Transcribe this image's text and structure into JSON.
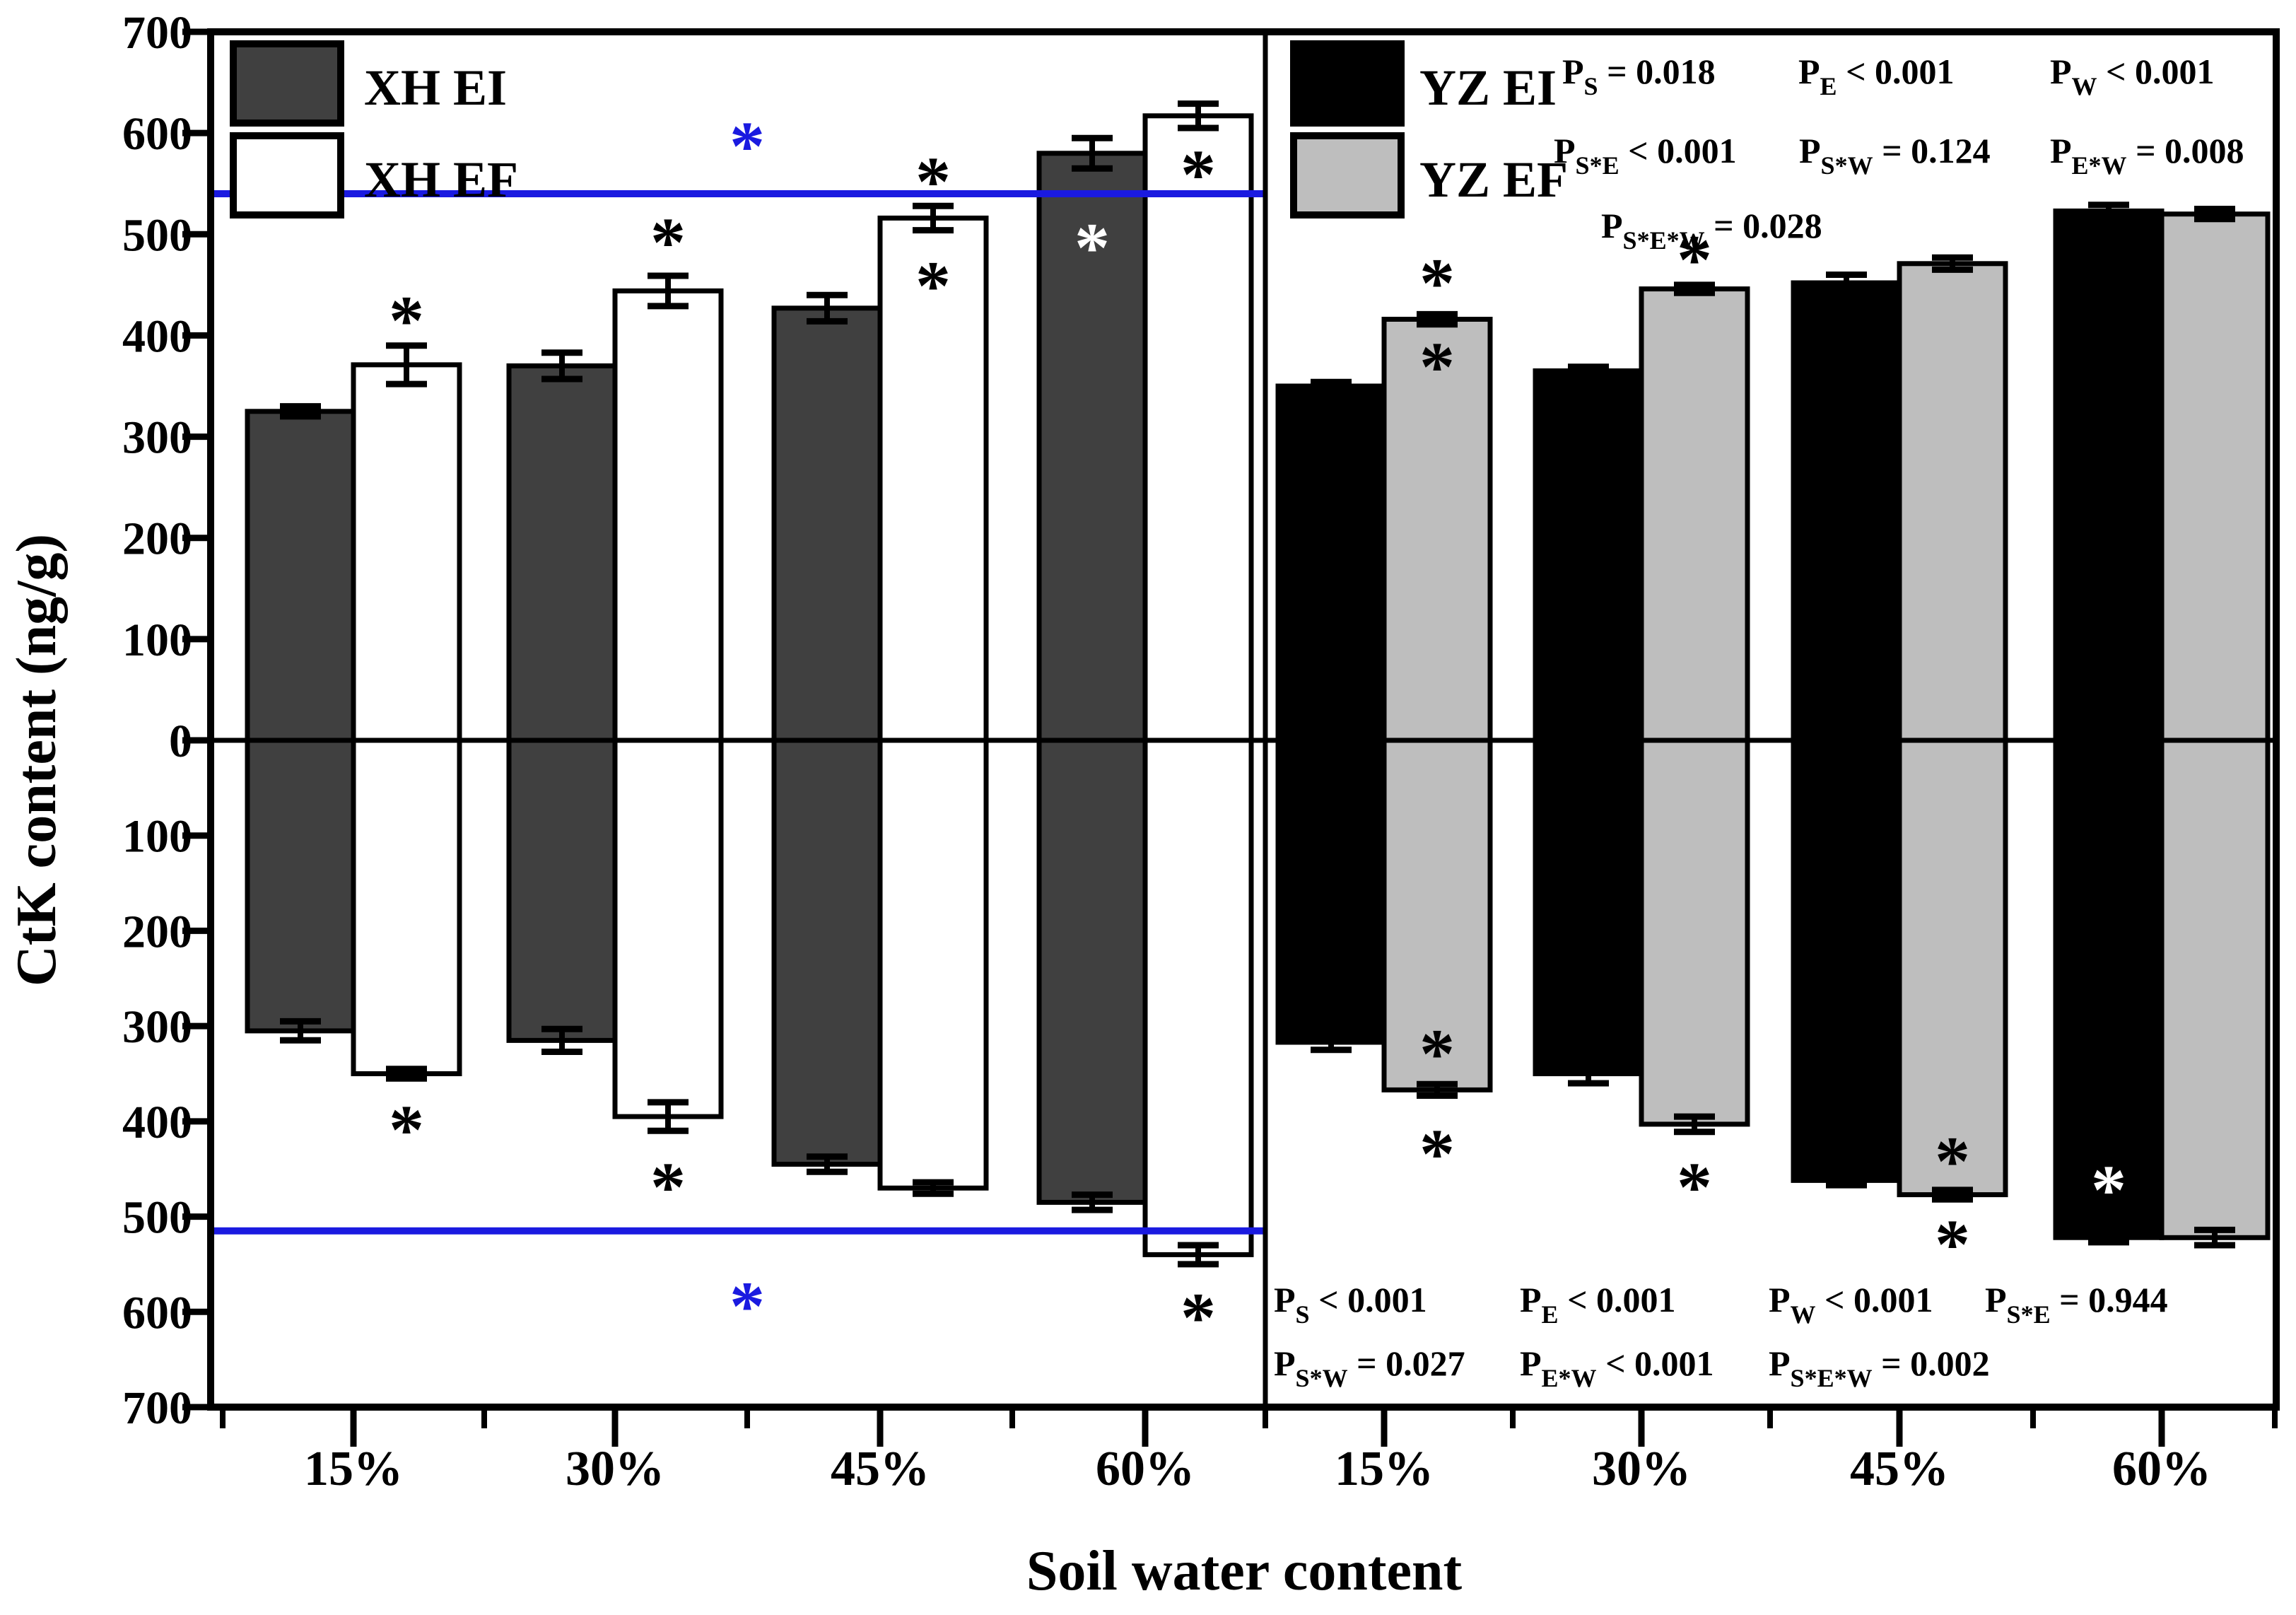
{
  "chart_data": {
    "type": "bar",
    "title": "",
    "xlabel": "Soil water content",
    "ylabel": "CtK content (ng/g)",
    "categories": [
      "15%",
      "30%",
      "45%",
      "60%"
    ],
    "y_axis": {
      "upper_max": 700,
      "lower_min": -700,
      "tick_step": 100,
      "tick_labels": [
        700,
        600,
        500,
        400,
        300,
        200,
        100,
        0,
        100,
        200,
        300,
        400,
        500,
        600,
        700
      ],
      "note": "mirrored axis: positive values above zero line, absolute-labeled negative values below"
    },
    "grid": false,
    "colors": {
      "xh_ei_fill": "#404040",
      "xh_ef_fill": "#ffffff",
      "yz_ei_fill": "#000000",
      "yz_ef_fill": "#bebebe",
      "outline": "#000000",
      "ref_line_blue": "#1a1ae0",
      "background": "#ffffff"
    },
    "panels": [
      {
        "id": "XH",
        "legend": [
          {
            "label": "XH EI",
            "fill": "#404040"
          },
          {
            "label": "XH EF",
            "fill": "#ffffff"
          }
        ],
        "series": [
          {
            "name": "XH EI",
            "fill": "#404040",
            "upper": [
              325,
              370,
              427,
              580
            ],
            "upper_err": [
              5,
              13,
              13,
              15
            ],
            "lower": [
              -305,
              -315,
              -445,
              -485
            ],
            "lower_err": [
              10,
              12,
              8,
              8
            ]
          },
          {
            "name": "XH EF",
            "fill": "#ffffff",
            "upper": [
              371,
              444,
              516,
              617
            ],
            "upper_err": [
              19,
              15,
              12,
              12
            ],
            "lower": [
              -350,
              -395,
              -470,
              -540
            ],
            "lower_err": [
              5,
              15,
              6,
              10
            ]
          }
        ],
        "ref_lines": [
          {
            "value": 540,
            "color": "#1a1ae0"
          },
          {
            "value": -515,
            "color": "#1a1ae0"
          }
        ],
        "asterisks": [
          {
            "cat": 0,
            "series": 1,
            "value": 428,
            "color": "#000000"
          },
          {
            "cat": 1,
            "series": 1,
            "value": 505,
            "color": "#000000"
          },
          {
            "cat": 2,
            "series": 1,
            "value": 565,
            "color": "#000000"
          },
          {
            "cat": 2,
            "series": 1,
            "value": 462,
            "color": "#000000"
          },
          {
            "cat": 3,
            "series": 0,
            "value": 500,
            "color": "#ffffff"
          },
          {
            "cat": 3,
            "series": 1,
            "value": 572,
            "color": "#000000"
          },
          {
            "cat": 0,
            "series": 1,
            "value": -395,
            "color": "#000000"
          },
          {
            "cat": 1,
            "series": 1,
            "value": -455,
            "color": "#000000"
          },
          {
            "cat": 3,
            "series": 1,
            "value": -592,
            "color": "#000000"
          }
        ],
        "blue_asterisks": [
          {
            "value": 600,
            "color": "#1a1ae0"
          },
          {
            "value": -580,
            "color": "#1a1ae0"
          }
        ]
      },
      {
        "id": "YZ",
        "legend": [
          {
            "label": "YZ EI",
            "fill": "#000000"
          },
          {
            "label": "YZ EF",
            "fill": "#bebebe"
          }
        ],
        "series": [
          {
            "name": "YZ EI",
            "fill": "#000000",
            "upper": [
              350,
              365,
              452,
              523
            ],
            "upper_err": [
              4,
              4,
              8,
              6
            ],
            "lower": [
              -317,
              -350,
              -462,
              -522
            ],
            "lower_err": [
              8,
              10,
              5,
              5
            ]
          },
          {
            "name": "YZ EF",
            "fill": "#bebebe",
            "upper": [
              416,
              446,
              471,
              520
            ],
            "upper_err": [
              5,
              4,
              6,
              5
            ],
            "lower": [
              -367,
              -403,
              -477,
              -522
            ],
            "lower_err": [
              6,
              8,
              5,
              8
            ]
          }
        ],
        "ref_lines": [],
        "asterisks": [
          {
            "cat": 0,
            "series": 1,
            "value": 465,
            "color": "#000000"
          },
          {
            "cat": 0,
            "series": 1,
            "value": 382,
            "color": "#000000"
          },
          {
            "cat": 1,
            "series": 1,
            "value": 488,
            "color": "#000000"
          },
          {
            "cat": 0,
            "series": 1,
            "value": -315,
            "color": "#000000"
          },
          {
            "cat": 0,
            "series": 1,
            "value": -420,
            "color": "#000000"
          },
          {
            "cat": 1,
            "series": 1,
            "value": -455,
            "color": "#000000"
          },
          {
            "cat": 2,
            "series": 1,
            "value": -428,
            "color": "#000000"
          },
          {
            "cat": 2,
            "series": 1,
            "value": -515,
            "color": "#000000"
          },
          {
            "cat": 3,
            "series": 0,
            "value": -458,
            "color": "#ffffff"
          }
        ],
        "blue_asterisks": []
      }
    ],
    "p_values_top_right": [
      [
        {
          "sub": "S",
          "text": "= 0.018"
        },
        {
          "sub": "E",
          "text": "< 0.001"
        },
        {
          "sub": "W",
          "text": "< 0.001"
        }
      ],
      [
        {
          "sub": "S*E",
          "text": "< 0.001"
        },
        {
          "sub": "S*W",
          "text": "= 0.124"
        },
        {
          "sub": "E*W",
          "text": "= 0.008"
        }
      ],
      [
        {
          "sub": "S*E*W",
          "text": "= 0.028"
        }
      ]
    ],
    "p_values_bottom_right": [
      [
        {
          "sub": "S",
          "text": "< 0.001"
        },
        {
          "sub": "E",
          "text": "< 0.001"
        },
        {
          "sub": "W",
          "text": "< 0.001"
        },
        {
          "sub": "S*E",
          "text": "= 0.944"
        }
      ],
      [
        {
          "sub": "S*W",
          "text": "= 0.027"
        },
        {
          "sub": "E*W",
          "text": "< 0.001"
        },
        {
          "sub": "S*E*W",
          "text": "= 0.002"
        }
      ]
    ]
  }
}
